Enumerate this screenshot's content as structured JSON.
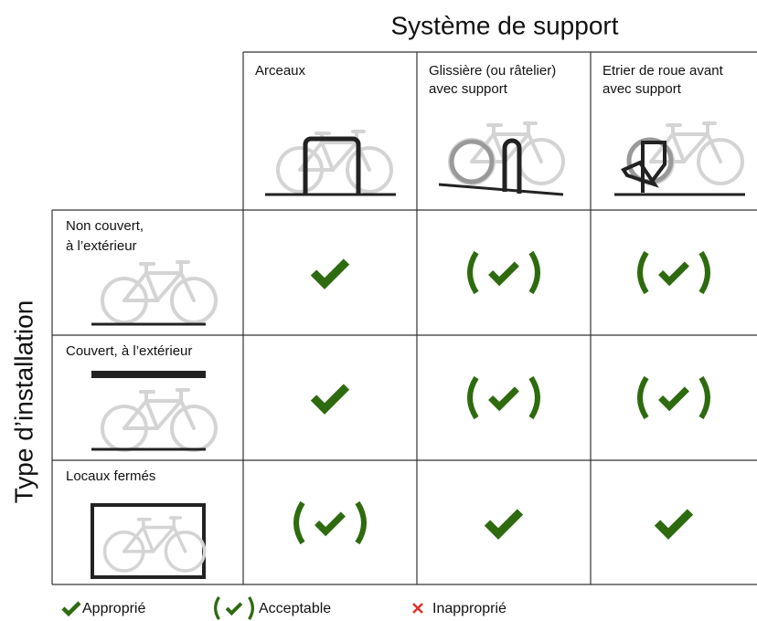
{
  "title": "Système de support",
  "row_axis_title": "Type d’installation",
  "columns": [
    {
      "lines": [
        "Arceaux"
      ]
    },
    {
      "lines": [
        "Glissière (ou râtelier)",
        "avec support"
      ]
    },
    {
      "lines": [
        "Etrier de roue avant",
        "avec support"
      ]
    }
  ],
  "rows": [
    {
      "lines": [
        "Non couvert,",
        "à l’extérieur"
      ],
      "cells": [
        "Approprié",
        "Acceptable",
        "Acceptable"
      ]
    },
    {
      "lines": [
        "Couvert, à l’extérieur"
      ],
      "cells": [
        "Approprié",
        "Acceptable",
        "Acceptable"
      ]
    },
    {
      "lines": [
        "Locaux fermés"
      ],
      "cells": [
        "Acceptable",
        "Approprié",
        "Approprié"
      ]
    }
  ],
  "legend": [
    "Approprié",
    "Acceptable",
    "Inapproprié"
  ]
}
